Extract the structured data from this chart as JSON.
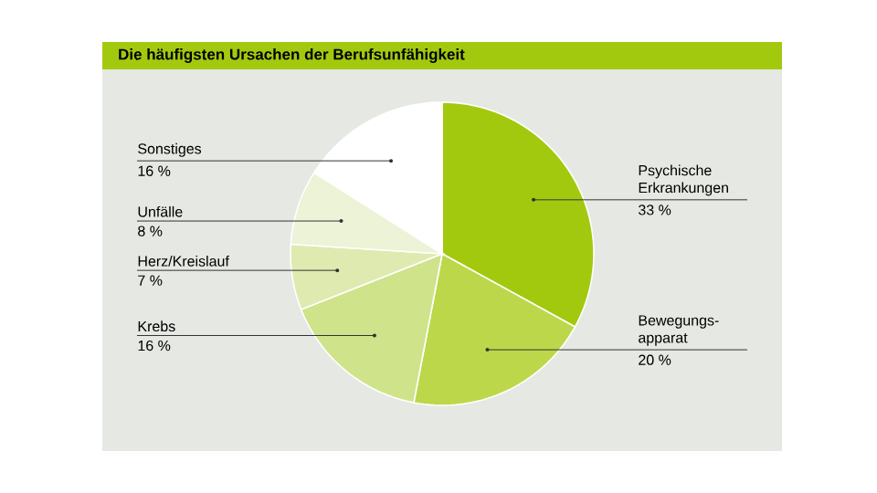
{
  "chart_data": {
    "type": "pie",
    "title": "Die häufigsten Ursachen der Berufsunfähigkeit",
    "categories": [
      "Psychische Erkrankungen",
      "Bewegungs-apparat",
      "Krebs",
      "Herz/Kreislauf",
      "Unfälle",
      "Sonstiges"
    ],
    "values": [
      33,
      20,
      16,
      7,
      8,
      16
    ],
    "value_labels": [
      "33 %",
      "20 %",
      "16 %",
      "7 %",
      "8 %",
      "16 %"
    ],
    "colors": [
      "#a3c90f",
      "#bcd84a",
      "#cfe38a",
      "#dfeab0",
      "#ecf3d6",
      "#ffffff"
    ]
  }
}
